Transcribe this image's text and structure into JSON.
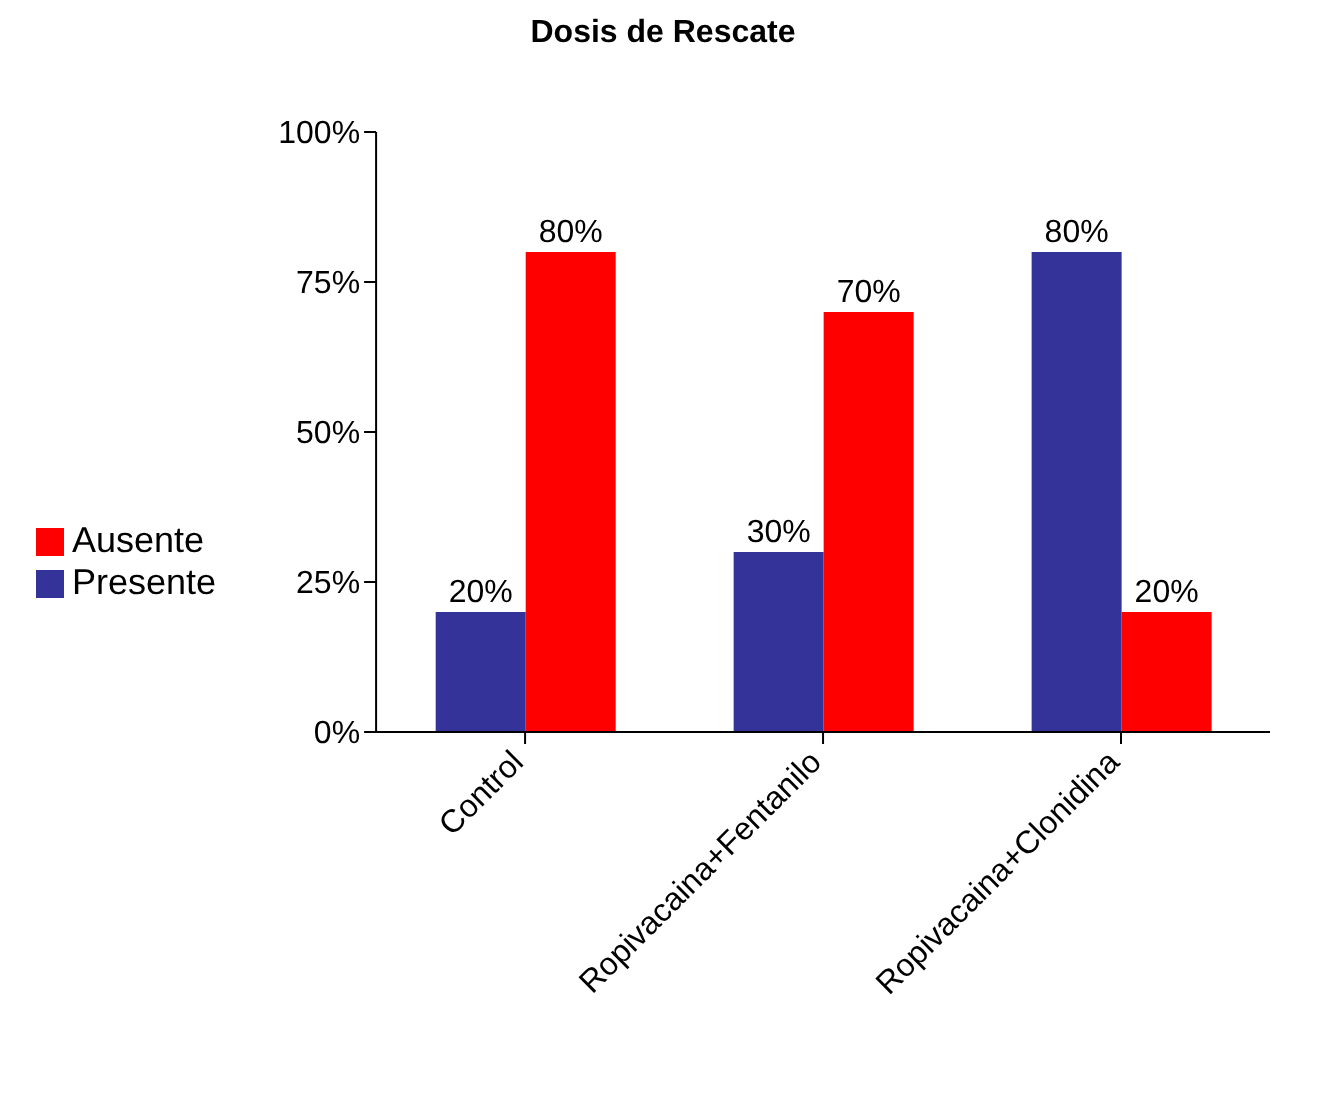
{
  "chart_data": {
    "type": "bar",
    "title": "Dosis de Rescate",
    "categories": [
      "Control",
      "Ropivacaina+Fentanilo",
      "Ropivacaina+Clonidina"
    ],
    "series": [
      {
        "name": "Presente",
        "color": "#333399",
        "values": [
          20,
          30,
          80
        ],
        "value_labels": [
          "20%",
          "30%",
          "80%"
        ]
      },
      {
        "name": "Ausente",
        "color": "#ff0000",
        "values": [
          80,
          70,
          20
        ],
        "value_labels": [
          "80%",
          "70%",
          "20%"
        ]
      }
    ],
    "ylim": [
      0,
      100
    ],
    "yticks": [
      {
        "value": 0,
        "label": "0%"
      },
      {
        "value": 25,
        "label": "25%"
      },
      {
        "value": 50,
        "label": "50%"
      },
      {
        "value": 75,
        "label": "75%"
      },
      {
        "value": 100,
        "label": "100%"
      }
    ],
    "grid": false,
    "legend": "left"
  }
}
